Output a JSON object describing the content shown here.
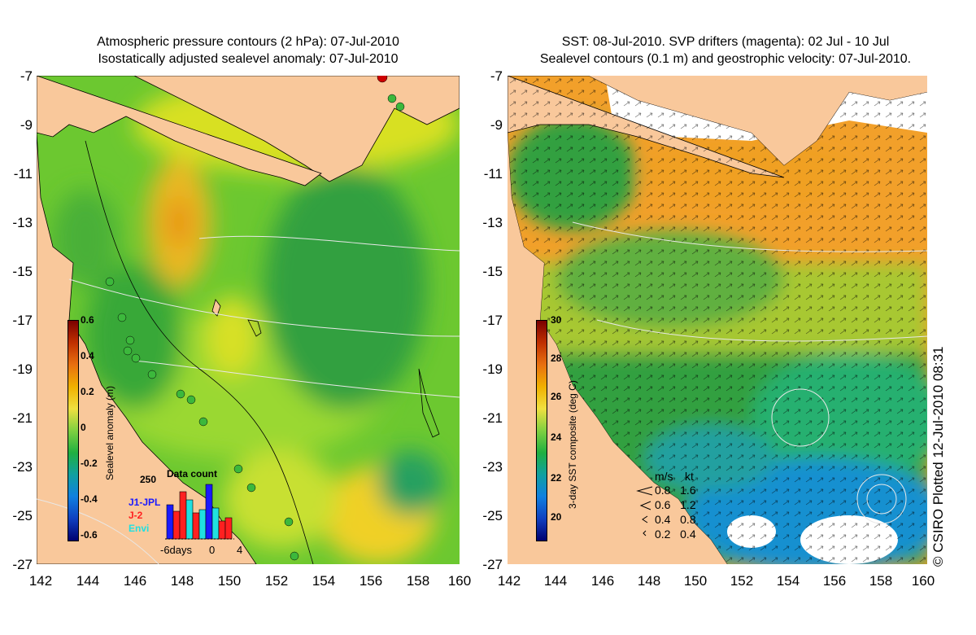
{
  "left_panel": {
    "title_line1": "Atmospheric pressure contours (2 hPa): 07-Jul-2010",
    "title_line2": "Isostatically adjusted sealevel anomaly: 07-Jul-2010",
    "colorbar": {
      "title": "Sealevel anomaly (m)",
      "ticks": [
        "0.6",
        "0.4",
        "0.2",
        "0",
        "-0.2",
        "-0.4",
        "-0.6"
      ]
    },
    "data_count": {
      "title": "Data count",
      "ymax": "250",
      "series": [
        "J1-JPL",
        "J-2",
        "Envi"
      ],
      "series_colors": [
        "#1a1aff",
        "#ff2020",
        "#20e0e0"
      ],
      "x_labels": [
        "-6days",
        "0",
        "4"
      ]
    }
  },
  "right_panel": {
    "title_line1": "SST: 08-Jul-2010. SVP drifters (magenta): 02 Jul - 10 Jul",
    "title_line2": "Sealevel contours (0.1 m) and geostrophic velocity: 07-Jul-2010.",
    "colorbar": {
      "title": "3-day SST composite (deg C)",
      "ticks": [
        "30",
        "28",
        "26",
        "24",
        "22",
        "20"
      ]
    },
    "vector_key": {
      "header_ms": "m/s",
      "header_kt": "kt",
      "rows": [
        {
          "ms": "0.8",
          "kt": "1.6"
        },
        {
          "ms": "0.6",
          "kt": "1.2"
        },
        {
          "ms": "0.4",
          "kt": "0.8"
        },
        {
          "ms": "0.2",
          "kt": "0.4"
        }
      ]
    }
  },
  "y_ticks": [
    "-7",
    "-9",
    "-11",
    "-13",
    "-15",
    "-17",
    "-19",
    "-21",
    "-23",
    "-25",
    "-27"
  ],
  "x_ticks": [
    "142",
    "144",
    "146",
    "148",
    "150",
    "152",
    "154",
    "156",
    "158",
    "160"
  ],
  "credit": "© CSIRO Plotted 12-Jul-2010 08:31",
  "colors": {
    "land": "#f9c89b",
    "sla_green": "#3cb83c",
    "sst_orange": "#f2a02a"
  }
}
